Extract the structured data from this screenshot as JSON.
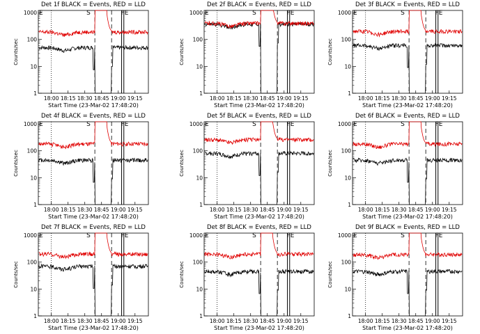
{
  "colors": {
    "events": "#000000",
    "lld": "#e00000",
    "axis": "#000000"
  },
  "shared": {
    "ylabel": "Counts/sec",
    "xlabel": "Start Time (23-Mar-02 17:48:20)",
    "yticks": [
      "1",
      "10",
      "100",
      "1000"
    ],
    "xticks": [
      "18:00",
      "18:15",
      "18:30",
      "18:45",
      "19:00",
      "19:15"
    ],
    "markers": {
      "left": "E",
      "middle": "S",
      "right": "FE"
    }
  },
  "chart_data": [
    {
      "type": "line",
      "title": "Det 1f BLACK = Events, RED = LLD",
      "y_scale": "log",
      "ylim": [
        1,
        1200
      ],
      "x_time_range": [
        "17:48:20",
        "19:27"
      ],
      "series": [
        {
          "name": "Events",
          "color": "#000000",
          "level_counts_per_sec": 50,
          "spike_at": "18:39",
          "drop_at": "18:38"
        },
        {
          "name": "LLD",
          "color": "#e00000",
          "level_counts_per_sec": 190,
          "flare_peak": "18:41"
        }
      ],
      "vertical_lines": {
        "dotted": "18:00",
        "dashed": [
          "18:39",
          "18:54"
        ],
        "solid": [
          "19:03",
          "19:05"
        ]
      }
    },
    {
      "type": "line",
      "title": "Det 2f BLACK = Events, RED = LLD",
      "y_scale": "log",
      "ylim": [
        1,
        1200
      ],
      "x_time_range": [
        "17:48:20",
        "19:27"
      ],
      "series": [
        {
          "name": "Events",
          "color": "#000000",
          "level_counts_per_sec": 370,
          "spike_at": "18:39",
          "drop_at": "18:38"
        },
        {
          "name": "LLD",
          "color": "#e00000",
          "level_counts_per_sec": 400,
          "flare_peak": "18:43"
        }
      ],
      "vertical_lines": {
        "dotted": "18:00",
        "dashed": [
          "18:39",
          "18:54"
        ],
        "solid": [
          "19:03",
          "19:05"
        ]
      }
    },
    {
      "type": "line",
      "title": "Det 3f BLACK = Events, RED = LLD",
      "y_scale": "log",
      "ylim": [
        1,
        1200
      ],
      "x_time_range": [
        "17:48:20",
        "19:27"
      ],
      "series": [
        {
          "name": "Events",
          "color": "#000000",
          "level_counts_per_sec": 60,
          "spike_at": "18:39",
          "drop_at": "18:38"
        },
        {
          "name": "LLD",
          "color": "#e00000",
          "level_counts_per_sec": 200,
          "flare_peak": "18:41"
        }
      ],
      "vertical_lines": {
        "dotted": "18:00",
        "dashed": [
          "18:39",
          "18:54"
        ],
        "solid": [
          "19:03",
          "19:05"
        ]
      }
    },
    {
      "type": "line",
      "title": "Det 4f BLACK = Events, RED = LLD",
      "y_scale": "log",
      "ylim": [
        1,
        1200
      ],
      "x_time_range": [
        "17:48:20",
        "19:27"
      ],
      "series": [
        {
          "name": "Events",
          "color": "#000000",
          "level_counts_per_sec": 45,
          "spike_at": "18:39",
          "drop_at": "18:38"
        },
        {
          "name": "LLD",
          "color": "#e00000",
          "level_counts_per_sec": 180,
          "flare_peak": "18:41"
        }
      ],
      "vertical_lines": {
        "dotted": "18:00",
        "dashed": [
          "18:39",
          "18:54"
        ],
        "solid": [
          "19:03",
          "19:05"
        ]
      }
    },
    {
      "type": "line",
      "title": "Det 5f BLACK = Events, RED = LLD",
      "y_scale": "log",
      "ylim": [
        1,
        1200
      ],
      "x_time_range": [
        "17:48:20",
        "19:27"
      ],
      "series": [
        {
          "name": "Events",
          "color": "#000000",
          "level_counts_per_sec": 80,
          "spike_at": "18:39",
          "drop_at": "18:38"
        },
        {
          "name": "LLD",
          "color": "#e00000",
          "level_counts_per_sec": 260,
          "flare_peak": "18:42"
        }
      ],
      "vertical_lines": {
        "dotted": "18:00",
        "dashed": [
          "18:39",
          "18:54"
        ],
        "solid": [
          "19:03",
          "19:05"
        ]
      }
    },
    {
      "type": "line",
      "title": "Det 6f BLACK = Events, RED = LLD",
      "y_scale": "log",
      "ylim": [
        1,
        1200
      ],
      "x_time_range": [
        "17:48:20",
        "19:27"
      ],
      "series": [
        {
          "name": "Events",
          "color": "#000000",
          "level_counts_per_sec": 45,
          "spike_at": "18:39",
          "drop_at": "18:38"
        },
        {
          "name": "LLD",
          "color": "#e00000",
          "level_counts_per_sec": 180,
          "flare_peak": "18:41"
        }
      ],
      "vertical_lines": {
        "dotted": "18:00",
        "dashed": [
          "18:39",
          "18:54"
        ],
        "solid": [
          "19:03",
          "19:05"
        ]
      }
    },
    {
      "type": "line",
      "title": "Det 7f BLACK = Events, RED = LLD",
      "y_scale": "log",
      "ylim": [
        1,
        1200
      ],
      "x_time_range": [
        "17:48:20",
        "19:27"
      ],
      "series": [
        {
          "name": "Events",
          "color": "#000000",
          "level_counts_per_sec": 70,
          "spike_at": "18:39",
          "drop_at": "18:38"
        },
        {
          "name": "LLD",
          "color": "#e00000",
          "level_counts_per_sec": 200,
          "flare_peak": "18:41"
        }
      ],
      "vertical_lines": {
        "dotted": "18:00",
        "dashed": [
          "18:39",
          "18:54"
        ],
        "solid": [
          "19:03",
          "19:05"
        ]
      }
    },
    {
      "type": "line",
      "title": "Det 8f BLACK = Events, RED = LLD",
      "y_scale": "log",
      "ylim": [
        1,
        1200
      ],
      "x_time_range": [
        "17:48:20",
        "19:27"
      ],
      "series": [
        {
          "name": "Events",
          "color": "#000000",
          "level_counts_per_sec": 45,
          "spike_at": "18:39",
          "drop_at": "18:38"
        },
        {
          "name": "LLD",
          "color": "#e00000",
          "level_counts_per_sec": 200,
          "flare_peak": "18:41"
        }
      ],
      "vertical_lines": {
        "dotted": "18:00",
        "dashed": [
          "18:39",
          "18:54"
        ],
        "solid": [
          "19:03",
          "19:05"
        ]
      }
    },
    {
      "type": "line",
      "title": "Det 9f BLACK = Events, RED = LLD",
      "y_scale": "log",
      "ylim": [
        1,
        1200
      ],
      "x_time_range": [
        "17:48:20",
        "19:27"
      ],
      "series": [
        {
          "name": "Events",
          "color": "#000000",
          "level_counts_per_sec": 45,
          "spike_at": "18:39",
          "drop_at": "18:38"
        },
        {
          "name": "LLD",
          "color": "#e00000",
          "level_counts_per_sec": 190,
          "flare_peak": "18:41"
        }
      ],
      "vertical_lines": {
        "dotted": "18:00",
        "dashed": [
          "18:39",
          "18:54"
        ],
        "solid": [
          "19:03",
          "19:05"
        ]
      }
    }
  ]
}
